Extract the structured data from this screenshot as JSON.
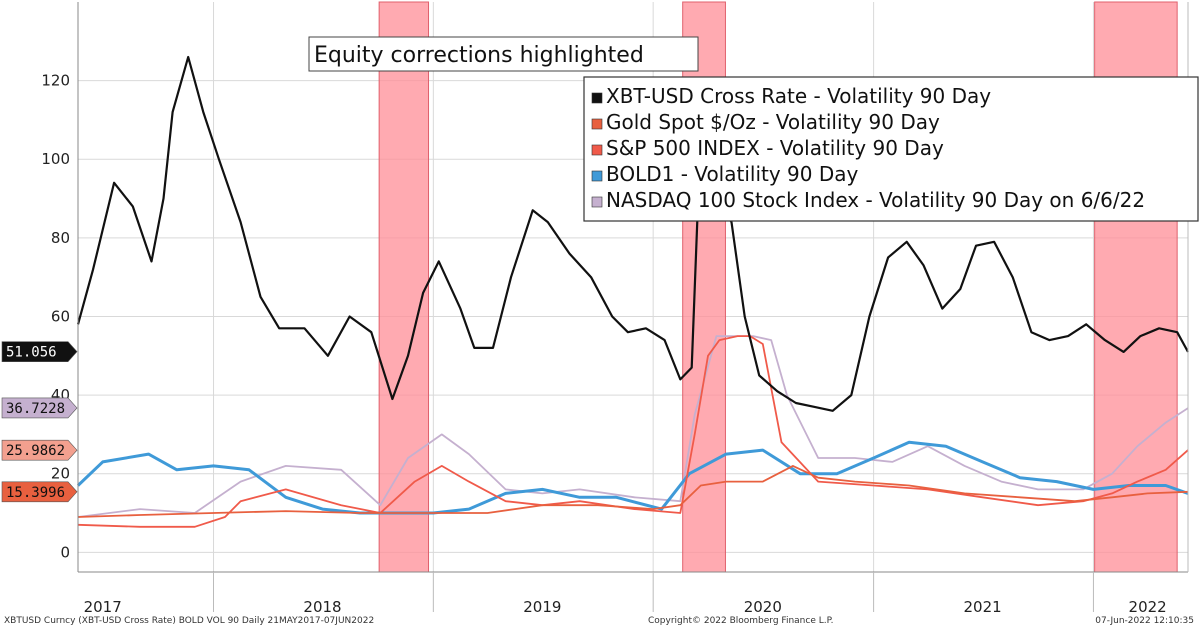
{
  "chart_data": {
    "type": "line",
    "title": "",
    "annotation": "Equity corrections highlighted",
    "xlabel": "",
    "ylabel": "",
    "x_range": [
      "2017-05-21",
      "2022-06-07"
    ],
    "ylim": [
      -5,
      140
    ],
    "y_ticks": [
      0,
      20,
      40,
      60,
      80,
      100,
      120
    ],
    "y_tick_labels": [
      "0",
      "20",
      "40",
      "60",
      "80",
      "100",
      "120"
    ],
    "x_tick_labels": [
      "2017",
      "2018",
      "2019",
      "2020",
      "2021",
      "2022"
    ],
    "x_tick_label_dates": [
      "2017-07-01",
      "2018-07-01",
      "2019-07-01",
      "2020-07-01",
      "2021-07-01",
      "2022-04-01"
    ],
    "x_year_boundaries": [
      "2018-01-01",
      "2019-01-01",
      "2020-01-01",
      "2021-01-01",
      "2022-01-01"
    ],
    "grid": true,
    "legend_position": "top-right",
    "highlight_periods": [
      {
        "start": "2018-10-03",
        "end": "2018-12-24"
      },
      {
        "start": "2020-02-19",
        "end": "2020-04-30"
      },
      {
        "start": "2022-01-03",
        "end": "2022-05-20"
      }
    ],
    "last_value_labels": [
      {
        "text": "51.056",
        "value": 51.056,
        "bg": "#111111",
        "color": "#ffffff"
      },
      {
        "text": "36.7228",
        "value": 36.7228,
        "bg": "#c5b0cf",
        "color": "#111111"
      },
      {
        "text": "25.9862",
        "value": 25.9862,
        "bg": "#f3a08f",
        "color": "#111111"
      },
      {
        "text": "15.3996",
        "value": 15.3996,
        "bg": "#e8603f",
        "color": "#111111"
      }
    ],
    "series": [
      {
        "name": "XBT-USD Cross Rate - Volatility 90 Day",
        "color": "#111111",
        "x": [
          "2017-05-21",
          "2017-06-15",
          "2017-07-20",
          "2017-08-20",
          "2017-09-20",
          "2017-10-10",
          "2017-10-25",
          "2017-11-20",
          "2017-12-15",
          "2018-01-10",
          "2018-02-15",
          "2018-03-20",
          "2018-04-20",
          "2018-06-01",
          "2018-07-10",
          "2018-08-15",
          "2018-09-20",
          "2018-10-25",
          "2018-11-20",
          "2018-12-15",
          "2019-01-10",
          "2019-02-15",
          "2019-03-10",
          "2019-04-10",
          "2019-05-10",
          "2019-06-15",
          "2019-07-10",
          "2019-08-15",
          "2019-09-20",
          "2019-10-25",
          "2019-11-20",
          "2019-12-20",
          "2020-01-20",
          "2020-02-15",
          "2020-03-05",
          "2020-03-15",
          "2020-04-15",
          "2020-05-10",
          "2020-06-01",
          "2020-06-25",
          "2020-07-25",
          "2020-08-25",
          "2020-09-25",
          "2020-10-25",
          "2020-11-25",
          "2020-12-25",
          "2021-01-25",
          "2021-02-25",
          "2021-03-25",
          "2021-04-25",
          "2021-05-25",
          "2021-06-20",
          "2021-07-20",
          "2021-08-20",
          "2021-09-20",
          "2021-10-20",
          "2021-11-20",
          "2021-12-20",
          "2022-01-20",
          "2022-02-20",
          "2022-03-20",
          "2022-04-20",
          "2022-05-20",
          "2022-06-07"
        ],
        "values": [
          58,
          72,
          94,
          88,
          74,
          90,
          112,
          126,
          112,
          100,
          84,
          65,
          57,
          57,
          50,
          60,
          56,
          39,
          50,
          66,
          74,
          62,
          52,
          52,
          70,
          87,
          84,
          76,
          70,
          60,
          56,
          57,
          54,
          44,
          47,
          87,
          90,
          84,
          60,
          45,
          41,
          38,
          37,
          36,
          40,
          60,
          75,
          79,
          73,
          62,
          67,
          78,
          79,
          70,
          56,
          54,
          55,
          58,
          54,
          51,
          55,
          57,
          56,
          51
        ]
      },
      {
        "name": "Gold Spot $/Oz - Volatility 90 Day",
        "color": "#e8603f",
        "x": [
          "2017-05-21",
          "2017-09-01",
          "2018-01-01",
          "2018-05-01",
          "2018-09-01",
          "2019-01-01",
          "2019-04-01",
          "2019-07-01",
          "2019-10-01",
          "2020-01-01",
          "2020-02-15",
          "2020-03-20",
          "2020-05-01",
          "2020-07-01",
          "2020-08-20",
          "2020-10-01",
          "2020-12-01",
          "2021-03-01",
          "2021-06-01",
          "2021-09-01",
          "2021-12-01",
          "2022-02-01",
          "2022-04-01",
          "2022-06-07"
        ],
        "values": [
          9,
          9.5,
          10,
          10.5,
          10,
          10,
          10,
          12,
          12,
          11,
          12,
          17,
          18,
          18,
          22,
          19,
          18,
          17,
          15,
          14,
          13,
          14,
          15,
          15.4
        ]
      },
      {
        "name": "S&P 500 INDEX - Volatility 90 Day",
        "color": "#f05a4a",
        "x": [
          "2017-05-21",
          "2017-09-01",
          "2017-12-01",
          "2018-01-20",
          "2018-02-15",
          "2018-05-01",
          "2018-08-01",
          "2018-10-05",
          "2018-12-01",
          "2019-01-15",
          "2019-03-01",
          "2019-05-01",
          "2019-07-01",
          "2019-09-01",
          "2019-12-01",
          "2020-02-15",
          "2020-03-10",
          "2020-04-01",
          "2020-04-20",
          "2020-05-20",
          "2020-06-10",
          "2020-07-01",
          "2020-08-01",
          "2020-10-01",
          "2021-01-01",
          "2021-04-01",
          "2021-07-01",
          "2021-10-01",
          "2021-12-15",
          "2022-02-01",
          "2022-03-15",
          "2022-05-01",
          "2022-06-07"
        ],
        "values": [
          7,
          6.5,
          6.5,
          9,
          13,
          16,
          12,
          10,
          18,
          22,
          18,
          13,
          12,
          13,
          11,
          10,
          30,
          50,
          54,
          55,
          55,
          53,
          28,
          18,
          17,
          16,
          14,
          12,
          13,
          15,
          18,
          21,
          26
        ]
      },
      {
        "name": "BOLD1 - Volatility 90 Day",
        "color": "#3f9ad8",
        "x": [
          "2017-05-21",
          "2017-07-01",
          "2017-09-15",
          "2017-11-01",
          "2018-01-01",
          "2018-03-01",
          "2018-05-01",
          "2018-07-01",
          "2018-09-01",
          "2018-11-01",
          "2019-01-01",
          "2019-03-01",
          "2019-05-01",
          "2019-07-01",
          "2019-09-01",
          "2019-11-01",
          "2020-01-15",
          "2020-03-01",
          "2020-05-01",
          "2020-07-01",
          "2020-09-01",
          "2020-11-01",
          "2021-01-01",
          "2021-03-01",
          "2021-05-01",
          "2021-07-01",
          "2021-09-01",
          "2021-11-01",
          "2022-01-01",
          "2022-03-01",
          "2022-05-01",
          "2022-06-07"
        ],
        "values": [
          17,
          23,
          25,
          21,
          22,
          21,
          14,
          11,
          10,
          10,
          10,
          11,
          15,
          16,
          14,
          14,
          11,
          20,
          25,
          26,
          20,
          20,
          24,
          28,
          27,
          23,
          19,
          18,
          16,
          17,
          17,
          15
        ]
      },
      {
        "name": "NASDAQ 100 Stock Index - Volatility 90 Day on 6/6/22",
        "color": "#c5b0cf",
        "x": [
          "2017-05-21",
          "2017-09-01",
          "2017-12-01",
          "2018-02-15",
          "2018-05-01",
          "2018-08-01",
          "2018-10-05",
          "2018-11-20",
          "2019-01-15",
          "2019-03-01",
          "2019-05-01",
          "2019-07-01",
          "2019-09-01",
          "2019-12-01",
          "2020-02-15",
          "2020-03-10",
          "2020-04-15",
          "2020-05-20",
          "2020-06-15",
          "2020-07-15",
          "2020-08-10",
          "2020-10-01",
          "2020-12-01",
          "2021-02-01",
          "2021-04-01",
          "2021-06-01",
          "2021-08-01",
          "2021-10-01",
          "2021-12-15",
          "2022-02-01",
          "2022-03-15",
          "2022-05-01",
          "2022-06-07"
        ],
        "values": [
          9,
          11,
          10,
          18,
          22,
          21,
          12,
          24,
          30,
          25,
          16,
          15,
          16,
          14,
          13,
          35,
          55,
          55,
          55,
          54,
          40,
          24,
          24,
          23,
          27,
          22,
          18,
          16,
          16,
          20,
          27,
          33,
          36.7
        ]
      }
    ]
  },
  "footer": {
    "left": "XBTUSD Curncy (XBT-USD Cross Rate) BOLD VOL 90  Daily 21MAY2017-07JUN2022",
    "center": "Copyright© 2022 Bloomberg Finance L.P.",
    "right": "07-Jun-2022 12:10:35"
  }
}
